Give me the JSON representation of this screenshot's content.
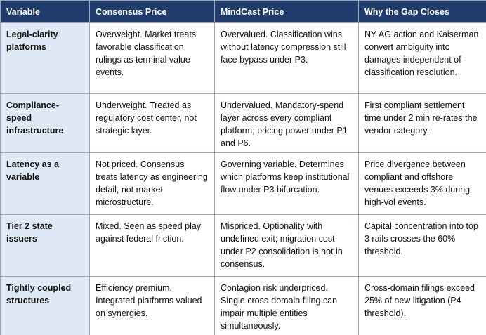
{
  "table": {
    "header": [
      "Variable",
      "Consensus Price",
      "MindCast Price",
      "Why the Gap Closes"
    ],
    "rows": [
      [
        "Legal-clarity platforms",
        "Overweight. Market treats favorable classification rulings as terminal value events.",
        "Overvalued. Classification wins without latency compression still face bypass under P3.",
        "NY AG action and Kaiserman convert ambiguity into damages independent of classification resolution."
      ],
      [
        "Compliance-speed infrastructure",
        "Underweight. Treated as regulatory cost center, not strategic layer.",
        "Undervalued. Mandatory-spend layer across every compliant platform; pricing power under P1 and P6.",
        "First compliant settlement time under 2 min re-rates the vendor category."
      ],
      [
        "Latency as a variable",
        "Not priced. Consensus treats latency as engineering detail, not market microstructure.",
        "Governing variable. Determines which platforms keep institutional flow under P3 bifurcation.",
        "Price divergence between compliant and offshore venues exceeds 3% during high-vol events."
      ],
      [
        "Tier 2 state issuers",
        "Mixed. Seen as speed play against federal friction.",
        "Mispriced. Optionality with undefined exit; migration cost under P2 consolidation is not in consensus.",
        "Capital concentration into top 3 rails crosses the 60% threshold."
      ],
      [
        "Tightly coupled structures",
        "Efficiency premium. Integrated platforms valued on synergies.",
        "Contagion risk underpriced. Single cross-domain filing can impair multiple entities simultaneously.",
        "Cross-domain filings exceed 25% of new litigation (P4 threshold)."
      ]
    ]
  }
}
